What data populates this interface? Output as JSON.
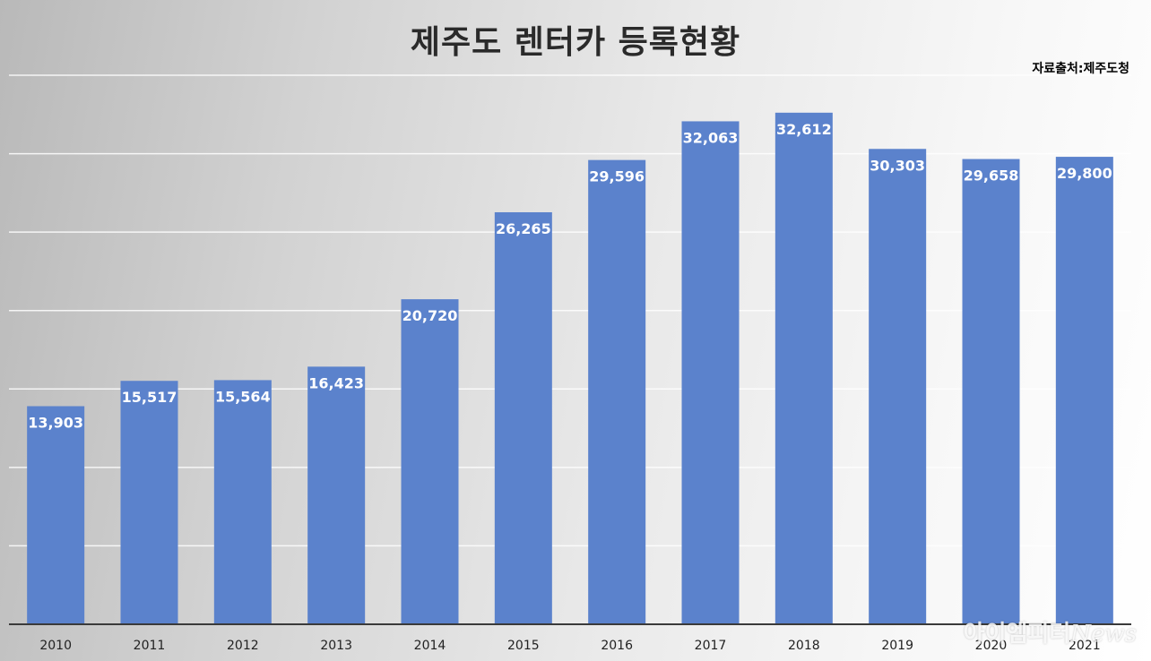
{
  "chart_data": {
    "type": "bar",
    "title": "제주도 렌터카 등록현황",
    "source_note": "자료출처:제주도청",
    "categories": [
      "2010",
      "2011",
      "2012",
      "2013",
      "2014",
      "2015",
      "2016",
      "2017",
      "2018",
      "2019",
      "2020",
      "2021"
    ],
    "values": [
      13903,
      15517,
      15564,
      16423,
      20720,
      26265,
      29596,
      32063,
      32612,
      30303,
      29658,
      29800
    ],
    "data_labels": [
      "13,903",
      "15,517",
      "15,564",
      "16,423",
      "20,720",
      "26,265",
      "29,596",
      "32,063",
      "32,612",
      "30,303",
      "29,658",
      "29,800"
    ],
    "xlabel": "",
    "ylabel": "",
    "ylim": [
      0,
      35000
    ],
    "grid": true,
    "bar_color": "#5b82cc"
  },
  "watermark": {
    "korean": "아이엠피터",
    "latin": "News"
  }
}
